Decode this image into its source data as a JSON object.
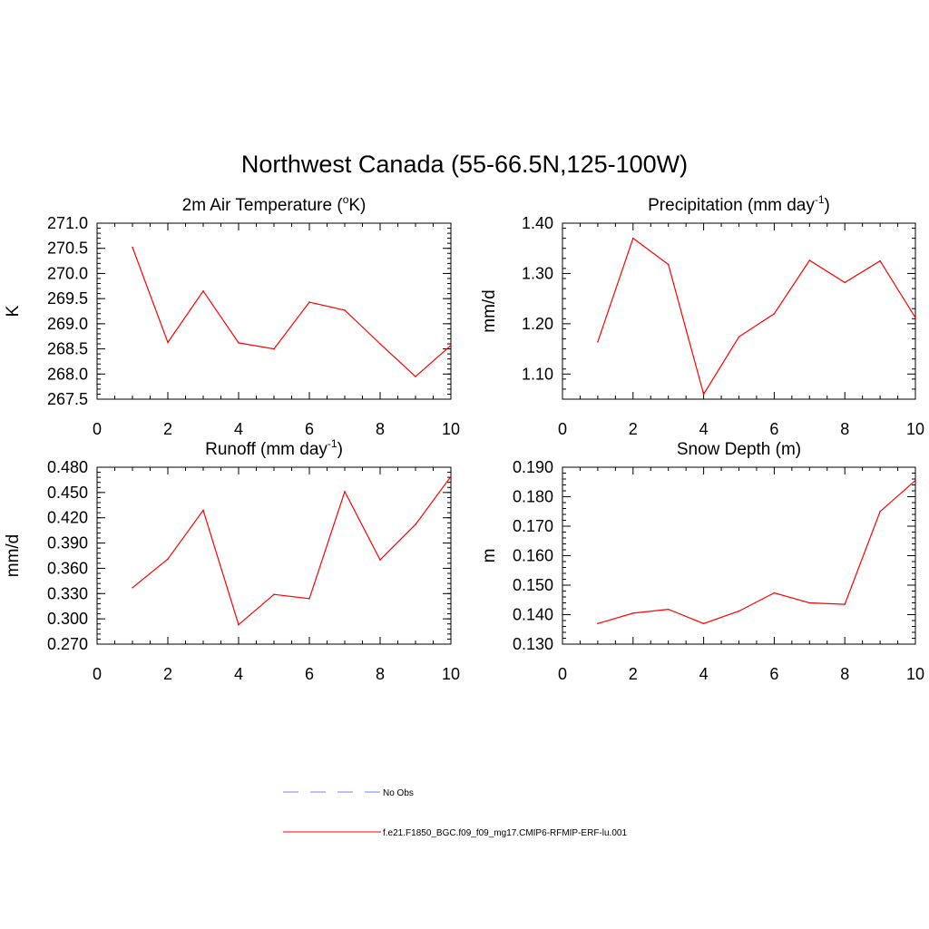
{
  "title": "Northwest Canada (55-66.5N,125-100W)",
  "colors": {
    "model_line": "#ff0000",
    "obs_line": "#9999ff",
    "axis": "#000000"
  },
  "legend": {
    "entries": [
      {
        "label": "No Obs",
        "style": "dashed",
        "color": "#9999ff"
      },
      {
        "label": "f.e21.F1850_BGC.f09_f09_mg17.CMIP6-RFMIP-ERF-lu.001",
        "style": "solid",
        "color": "#ff0000"
      }
    ]
  },
  "chart_data": [
    {
      "type": "line",
      "title": "2m Air Temperature (",
      "title_sup": "o",
      "title_after": "K)",
      "ylabel": "K",
      "xlim": [
        0,
        10
      ],
      "ylim": [
        267.5,
        271.0
      ],
      "xticks": [
        0,
        2,
        4,
        6,
        8,
        10
      ],
      "yticks": [
        "267.5",
        "268.0",
        "268.5",
        "269.0",
        "269.5",
        "270.0",
        "270.5",
        "271.0"
      ],
      "x": [
        1,
        2,
        3,
        4,
        5,
        6,
        7,
        8,
        9,
        10
      ],
      "values": [
        270.52,
        268.63,
        269.65,
        268.62,
        268.5,
        269.43,
        269.27,
        268.6,
        267.95,
        268.57
      ]
    },
    {
      "type": "line",
      "title": "Precipitation (mm day",
      "title_sup": "-1",
      "title_after": ")",
      "ylabel": "mm/d",
      "xlim": [
        0,
        10
      ],
      "ylim": [
        1.05,
        1.4
      ],
      "xticks": [
        0,
        2,
        4,
        6,
        8,
        10
      ],
      "yticks": [
        "1.10",
        "1.20",
        "1.30",
        "1.40"
      ],
      "x": [
        1,
        2,
        3,
        4,
        5,
        6,
        7,
        8,
        9,
        10
      ],
      "values": [
        1.164,
        1.37,
        1.318,
        1.06,
        1.174,
        1.22,
        1.326,
        1.282,
        1.325,
        1.212
      ]
    },
    {
      "type": "line",
      "title": "Runoff (mm day",
      "title_sup": "-1",
      "title_after": ")",
      "ylabel": "mm/d",
      "xlim": [
        0,
        10
      ],
      "ylim": [
        0.27,
        0.48
      ],
      "xticks": [
        0,
        2,
        4,
        6,
        8,
        10
      ],
      "yticks": [
        "0.270",
        "0.300",
        "0.330",
        "0.360",
        "0.390",
        "0.420",
        "0.450",
        "0.480"
      ],
      "x": [
        1,
        2,
        3,
        4,
        5,
        6,
        7,
        8,
        9,
        10
      ],
      "values": [
        0.337,
        0.371,
        0.429,
        0.293,
        0.329,
        0.324,
        0.451,
        0.37,
        0.412,
        0.469
      ]
    },
    {
      "type": "line",
      "title": "Snow Depth (m)",
      "title_sup": "",
      "title_after": "",
      "ylabel": "m",
      "xlim": [
        0,
        10
      ],
      "ylim": [
        0.13,
        0.19
      ],
      "xticks": [
        0,
        2,
        4,
        6,
        8,
        10
      ],
      "yticks": [
        "0.130",
        "0.140",
        "0.150",
        "0.160",
        "0.170",
        "0.180",
        "0.190"
      ],
      "x": [
        1,
        2,
        3,
        4,
        5,
        6,
        7,
        8,
        9,
        10
      ],
      "values": [
        0.137,
        0.1405,
        0.1418,
        0.137,
        0.1412,
        0.1474,
        0.144,
        0.1435,
        0.175,
        0.1855
      ]
    }
  ]
}
